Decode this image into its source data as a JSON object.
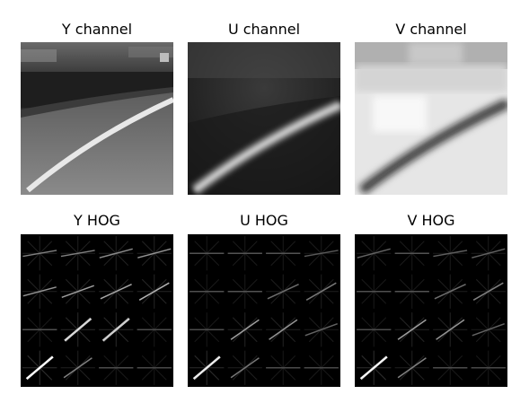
{
  "panels": [
    {
      "title": "Y channel"
    },
    {
      "title": "U channel"
    },
    {
      "title": "V channel"
    },
    {
      "title": "Y HOG"
    },
    {
      "title": "U HOG"
    },
    {
      "title": "V HOG"
    }
  ]
}
